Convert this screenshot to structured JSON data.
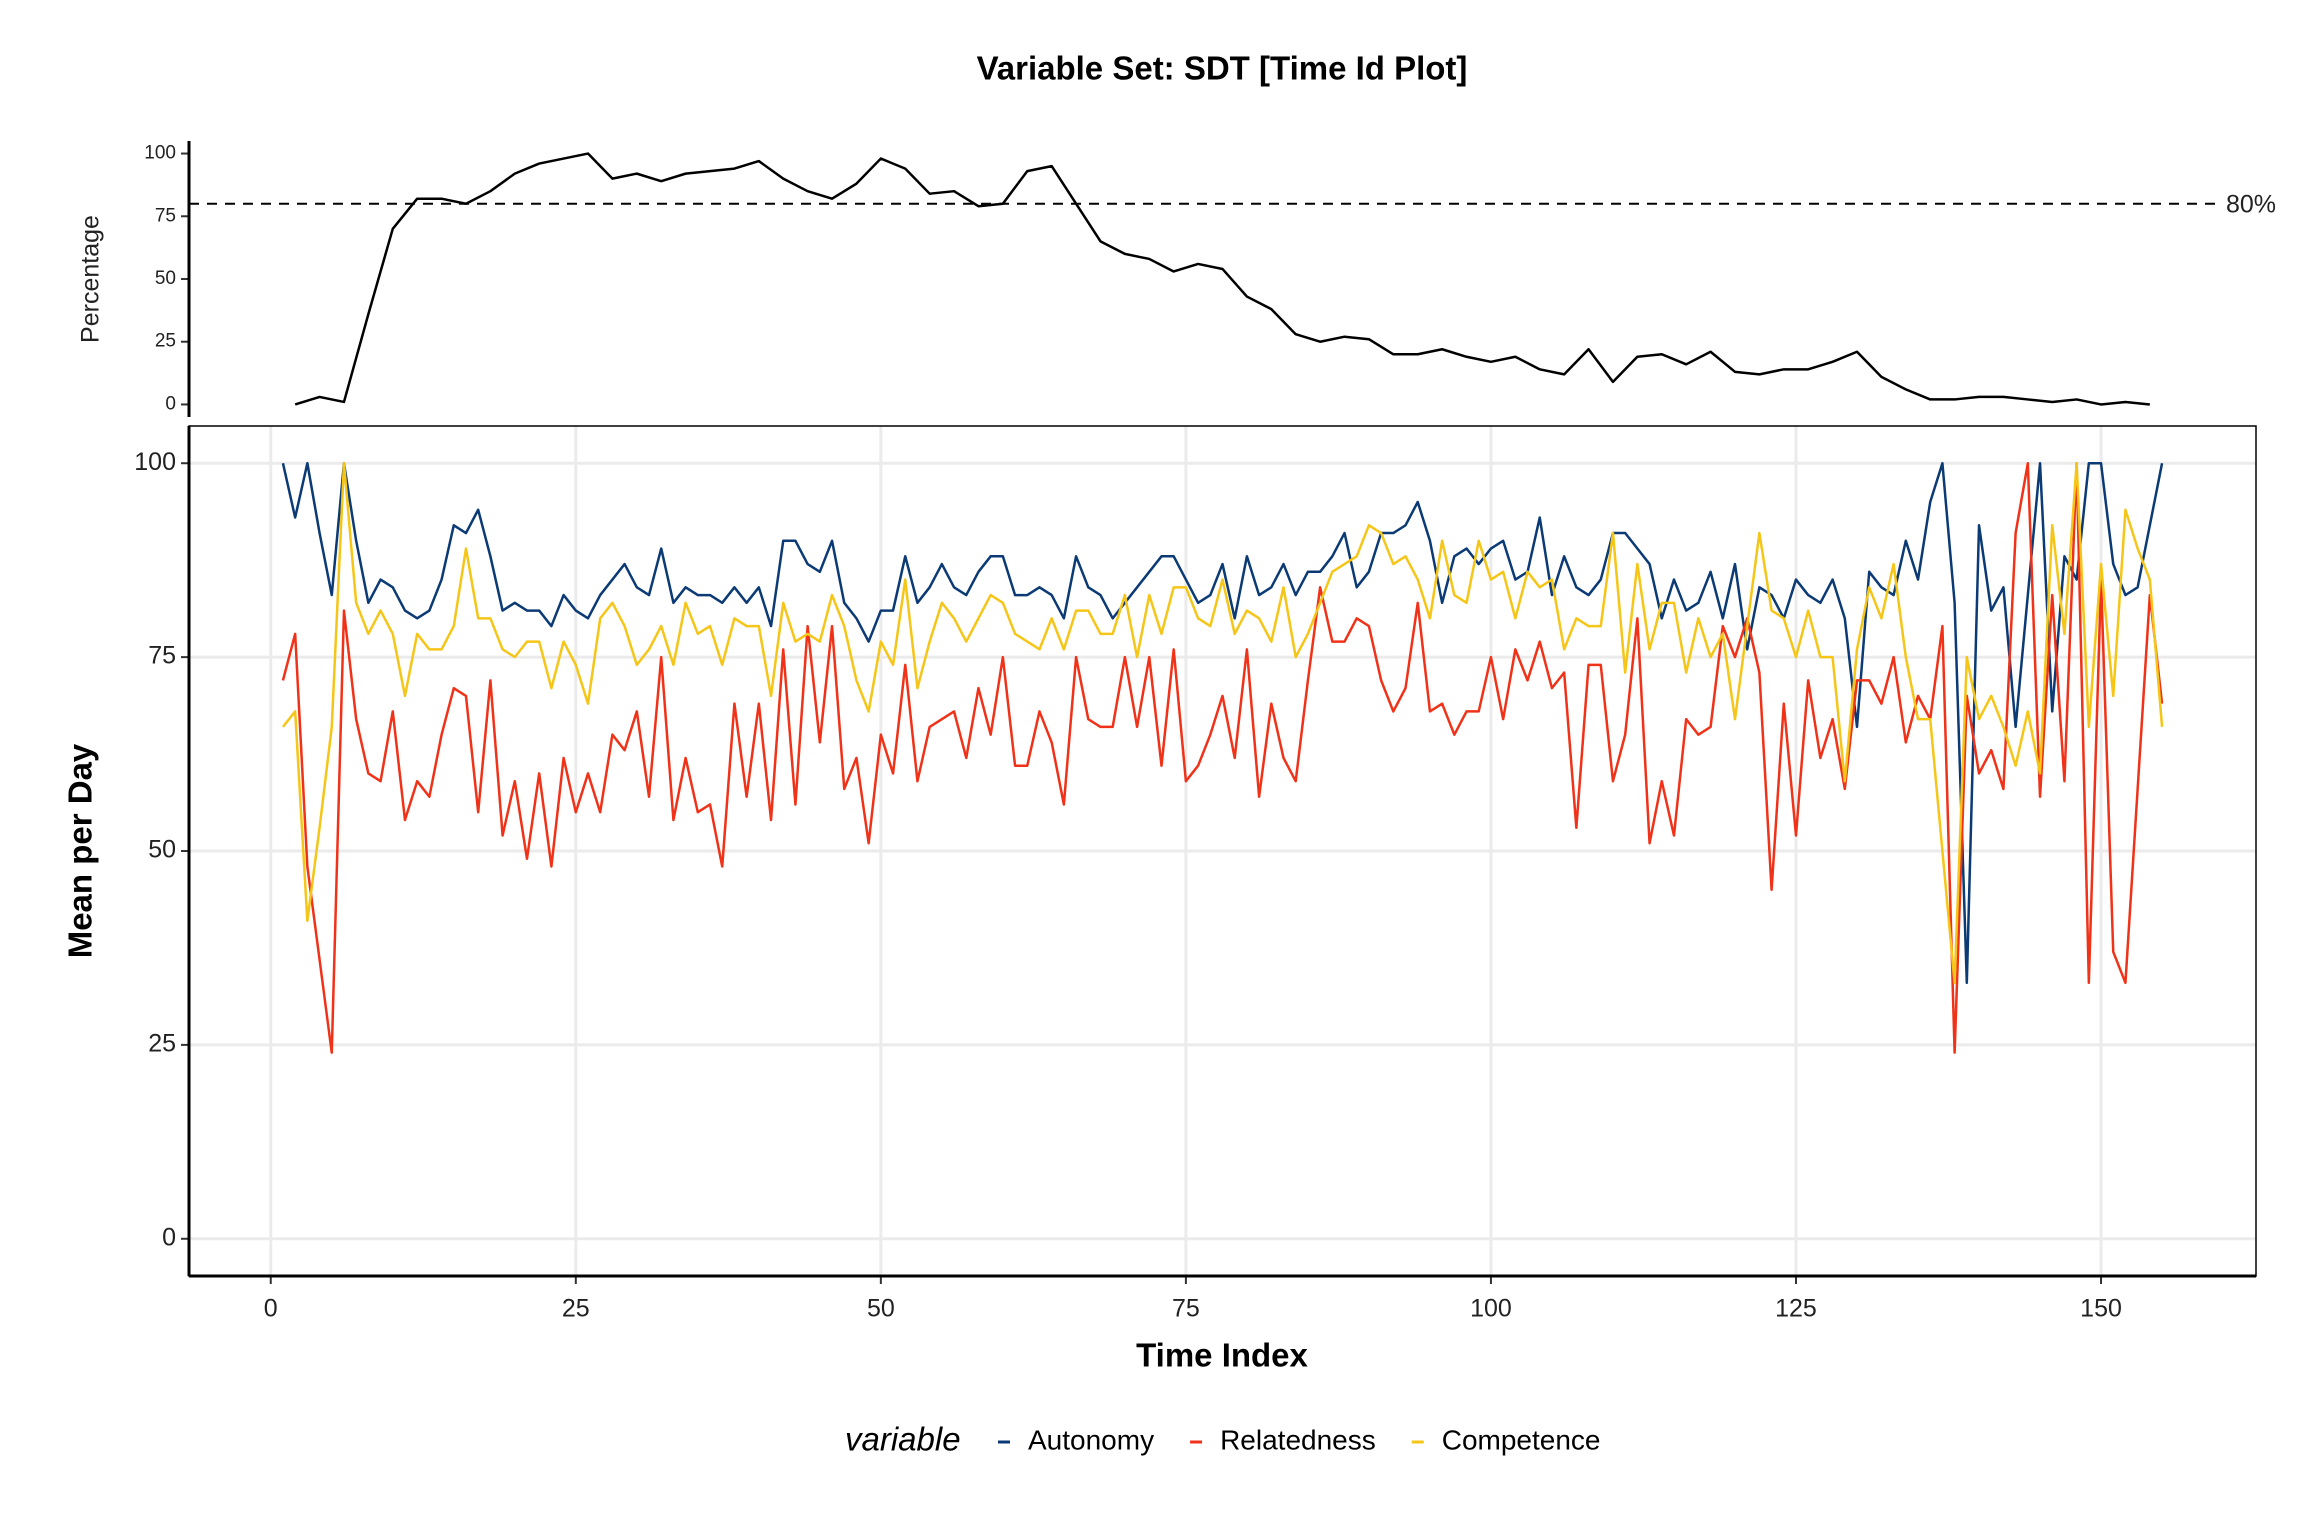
{
  "chart_data": [
    {
      "type": "line",
      "title": "Variable Set: SDT [Time Id Plot]",
      "y_label": "Percentage",
      "xlim": [
        -6.7,
        162.7
      ],
      "ylim": [
        -5,
        105
      ],
      "yticks": [
        0,
        25,
        50,
        75,
        100
      ],
      "grid": false,
      "reference_line": {
        "value": 80,
        "label": "80%"
      },
      "x": [
        2,
        4,
        6,
        8,
        10,
        12,
        14,
        16,
        18,
        20,
        22,
        24,
        26,
        28,
        30,
        32,
        34,
        36,
        38,
        40,
        42,
        44,
        46,
        48,
        50,
        52,
        54,
        56,
        58,
        60,
        62,
        64,
        66,
        68,
        70,
        72,
        74,
        76,
        78,
        80,
        82,
        84,
        86,
        88,
        90,
        92,
        94,
        96,
        98,
        100,
        102,
        104,
        106,
        108,
        110,
        112,
        114,
        116,
        118,
        120,
        122,
        124,
        126,
        128,
        130,
        132,
        134,
        136,
        138,
        140,
        142,
        144,
        146,
        148,
        150,
        152,
        154
      ],
      "series": [
        {
          "color": "#000000",
          "values": [
            0,
            3,
            1,
            36,
            70,
            82,
            82,
            80,
            85,
            92,
            96,
            98,
            100,
            90,
            92,
            89,
            92,
            93,
            94,
            97,
            90,
            85,
            82,
            88,
            98,
            94,
            84,
            85,
            79,
            80,
            93,
            95,
            80,
            65,
            60,
            58,
            53,
            56,
            54,
            43,
            38,
            28,
            25,
            27,
            26,
            20,
            20,
            22,
            19,
            17,
            19,
            14,
            12,
            22,
            9,
            19,
            20,
            16,
            21,
            13,
            12,
            14,
            14,
            17,
            21,
            11,
            6,
            2,
            2,
            3,
            3,
            2,
            1,
            2,
            0,
            1,
            0
          ]
        }
      ]
    },
    {
      "type": "line",
      "x_label": "Time Index",
      "y_label": "Mean per Day",
      "legend_title": "variable",
      "xlim": [
        -6.7,
        162.7
      ],
      "ylim": [
        -4.8,
        104.8
      ],
      "xticks": [
        0,
        25,
        50,
        75,
        100,
        125,
        150
      ],
      "yticks": [
        0,
        25,
        50,
        75,
        100
      ],
      "grid": true,
      "x": [
        1,
        2,
        3,
        4,
        5,
        6,
        7,
        8,
        9,
        10,
        11,
        12,
        13,
        14,
        15,
        16,
        17,
        18,
        19,
        20,
        21,
        22,
        23,
        24,
        25,
        26,
        27,
        28,
        29,
        30,
        31,
        32,
        33,
        34,
        35,
        36,
        37,
        38,
        39,
        40,
        41,
        42,
        43,
        44,
        45,
        46,
        47,
        48,
        49,
        50,
        51,
        52,
        53,
        54,
        55,
        56,
        57,
        58,
        59,
        60,
        61,
        62,
        63,
        64,
        65,
        66,
        67,
        68,
        69,
        70,
        71,
        72,
        73,
        74,
        75,
        76,
        77,
        78,
        79,
        80,
        81,
        82,
        83,
        84,
        85,
        86,
        87,
        88,
        89,
        90,
        91,
        92,
        93,
        94,
        95,
        96,
        97,
        98,
        99,
        100,
        101,
        102,
        103,
        104,
        105,
        106,
        107,
        108,
        109,
        110,
        111,
        112,
        113,
        114,
        115,
        116,
        117,
        118,
        119,
        120,
        121,
        122,
        123,
        124,
        125,
        126,
        127,
        128,
        129,
        130,
        131,
        132,
        133,
        134,
        135,
        136,
        137,
        138,
        139,
        140,
        141,
        142,
        143,
        144,
        145,
        146,
        147,
        148,
        149,
        150,
        151,
        152,
        153,
        154,
        155
      ],
      "series": [
        {
          "name": "Autonomy",
          "color": "#0b3a75",
          "values": [
            100,
            93,
            100,
            91,
            83,
            100,
            90,
            82,
            85,
            84,
            81,
            80,
            81,
            85,
            92,
            91,
            94,
            88,
            81,
            82,
            81,
            81,
            79,
            83,
            81,
            80,
            83,
            85,
            87,
            84,
            83,
            89,
            82,
            84,
            83,
            83,
            82,
            84,
            82,
            84,
            79,
            90,
            90,
            87,
            86,
            90,
            82,
            80,
            77,
            81,
            81,
            88,
            82,
            84,
            87,
            84,
            83,
            86,
            88,
            88,
            83,
            83,
            84,
            83,
            80,
            88,
            84,
            83,
            80,
            82,
            84,
            86,
            88,
            88,
            85,
            82,
            83,
            87,
            80,
            88,
            83,
            84,
            87,
            83,
            86,
            86,
            88,
            91,
            84,
            86,
            91,
            91,
            92,
            95,
            90,
            82,
            88,
            89,
            87,
            89,
            90,
            85,
            86,
            93,
            83,
            88,
            84,
            83,
            85,
            91,
            91,
            89,
            87,
            80,
            85,
            81,
            82,
            86,
            80,
            87,
            76,
            84,
            83,
            80,
            85,
            83,
            82,
            85,
            80,
            66,
            86,
            84,
            83,
            90,
            85,
            95,
            100,
            82,
            33,
            92,
            81,
            84,
            66,
            83,
            100,
            68,
            88,
            85,
            100,
            100,
            87,
            83,
            84,
            92,
            100
          ]
        },
        {
          "name": "Relatedness",
          "color": "#f03219",
          "values": [
            72,
            78,
            48,
            36,
            24,
            81,
            67,
            60,
            59,
            68,
            54,
            59,
            57,
            65,
            71,
            70,
            55,
            72,
            52,
            59,
            49,
            60,
            48,
            62,
            55,
            60,
            55,
            65,
            63,
            68,
            57,
            75,
            54,
            62,
            55,
            56,
            48,
            69,
            57,
            69,
            54,
            76,
            56,
            79,
            64,
            79,
            58,
            62,
            51,
            65,
            60,
            74,
            59,
            66,
            67,
            68,
            62,
            71,
            65,
            75,
            61,
            61,
            68,
            64,
            56,
            75,
            67,
            66,
            66,
            75,
            66,
            75,
            61,
            76,
            59,
            61,
            65,
            70,
            62,
            76,
            57,
            69,
            62,
            59,
            72,
            84,
            77,
            77,
            80,
            79,
            72,
            68,
            71,
            82,
            68,
            69,
            65,
            68,
            68,
            75,
            67,
            76,
            72,
            77,
            71,
            73,
            53,
            74,
            74,
            59,
            65,
            80,
            51,
            59,
            52,
            67,
            65,
            66,
            79,
            75,
            80,
            73,
            45,
            69,
            52,
            72,
            62,
            67,
            58,
            72,
            72,
            69,
            75,
            64,
            70,
            67,
            79,
            24,
            70,
            60,
            63,
            58,
            91,
            100,
            57,
            83,
            59,
            100,
            33,
            85,
            37,
            33,
            58,
            83,
            69
          ]
        },
        {
          "name": "Competence",
          "color": "#f5c518",
          "values": [
            66,
            68,
            41,
            53,
            66,
            100,
            82,
            78,
            81,
            78,
            70,
            78,
            76,
            76,
            79,
            89,
            80,
            80,
            76,
            75,
            77,
            77,
            71,
            77,
            74,
            69,
            80,
            82,
            79,
            74,
            76,
            79,
            74,
            82,
            78,
            79,
            74,
            80,
            79,
            79,
            70,
            82,
            77,
            78,
            77,
            83,
            79,
            72,
            68,
            77,
            74,
            85,
            71,
            77,
            82,
            80,
            77,
            80,
            83,
            82,
            78,
            77,
            76,
            80,
            76,
            81,
            81,
            78,
            78,
            83,
            75,
            83,
            78,
            84,
            84,
            80,
            79,
            85,
            78,
            81,
            80,
            77,
            84,
            75,
            78,
            82,
            86,
            87,
            88,
            92,
            91,
            87,
            88,
            85,
            80,
            90,
            83,
            82,
            90,
            85,
            86,
            80,
            86,
            84,
            85,
            76,
            80,
            79,
            79,
            91,
            73,
            87,
            76,
            82,
            82,
            73,
            80,
            75,
            78,
            67,
            79,
            91,
            81,
            80,
            75,
            81,
            75,
            75,
            59,
            76,
            84,
            80,
            87,
            75,
            67,
            67,
            50,
            33,
            75,
            67,
            70,
            66,
            61,
            68,
            60,
            92,
            78,
            100,
            66,
            87,
            70,
            94,
            89,
            85,
            66
          ]
        }
      ]
    }
  ]
}
